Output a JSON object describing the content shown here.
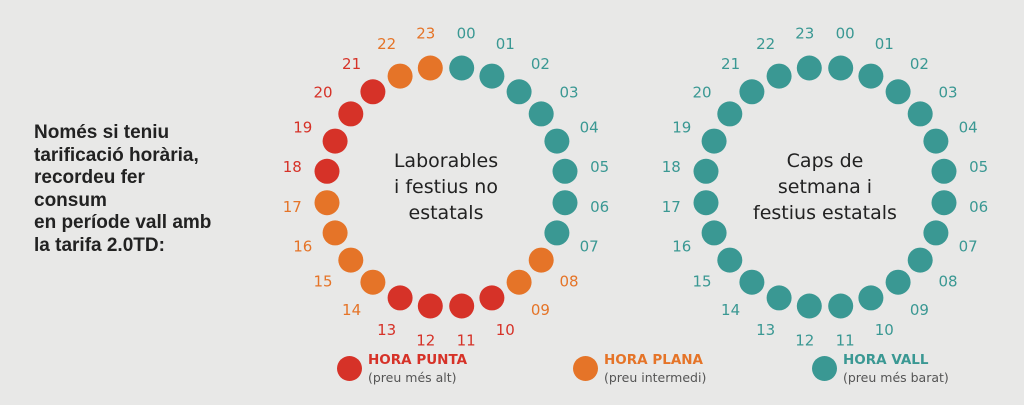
{
  "intro_text": "Només si teniu\ntarificació horària,\nrecordeu fer\nconsum\nen període vall amb\nla tarifa 2.0TD:",
  "colors": {
    "punta": "#d63228",
    "plana": "#e57428",
    "vall": "#3a9893"
  },
  "hour_labels": [
    "00",
    "01",
    "02",
    "03",
    "04",
    "05",
    "06",
    "07",
    "08",
    "09",
    "10",
    "11",
    "12",
    "13",
    "14",
    "15",
    "16",
    "17",
    "18",
    "19",
    "20",
    "21",
    "22",
    "23"
  ],
  "clocks": [
    {
      "title_lines": [
        "Laborables",
        "i festius no",
        "estatals"
      ],
      "periods": [
        "vall",
        "vall",
        "vall",
        "vall",
        "vall",
        "vall",
        "vall",
        "vall",
        "plana",
        "plana",
        "punta",
        "punta",
        "punta",
        "punta",
        "plana",
        "plana",
        "plana",
        "plana",
        "punta",
        "punta",
        "punta",
        "punta",
        "plana",
        "plana"
      ]
    },
    {
      "title_lines": [
        "Caps de",
        "setmana i",
        "festius estatals"
      ],
      "periods": [
        "vall",
        "vall",
        "vall",
        "vall",
        "vall",
        "vall",
        "vall",
        "vall",
        "vall",
        "vall",
        "vall",
        "vall",
        "vall",
        "vall",
        "vall",
        "vall",
        "vall",
        "vall",
        "vall",
        "vall",
        "vall",
        "vall",
        "vall",
        "vall"
      ]
    }
  ],
  "legend": [
    {
      "key": "punta",
      "label": "HORA PUNTA",
      "note": "(preu més alt)"
    },
    {
      "key": "plana",
      "label": "HORA PLANA",
      "note": "(preu intermedi)"
    },
    {
      "key": "vall",
      "label": "HORA VALL",
      "note": "(preu més barat)"
    }
  ]
}
